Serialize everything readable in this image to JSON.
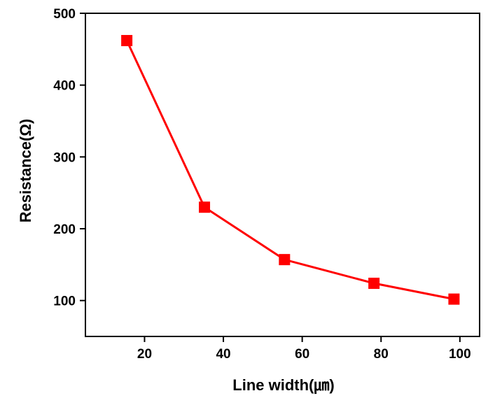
{
  "chart_data": {
    "type": "line",
    "title": "",
    "xlabel": "Line width(㎛)",
    "ylabel": "Resistance(Ω)",
    "xlim": [
      5,
      105
    ],
    "ylim": [
      50,
      500
    ],
    "xticks": [
      20,
      40,
      60,
      80,
      100
    ],
    "yticks": [
      100,
      200,
      300,
      400,
      500
    ],
    "grid": false,
    "legend": "none",
    "series": [
      {
        "x": [
          15.5,
          35.2,
          55.5,
          78.2,
          98.5
        ],
        "y": [
          462,
          230,
          157,
          124,
          102
        ],
        "color": "#ff0000",
        "marker": "square"
      }
    ]
  }
}
